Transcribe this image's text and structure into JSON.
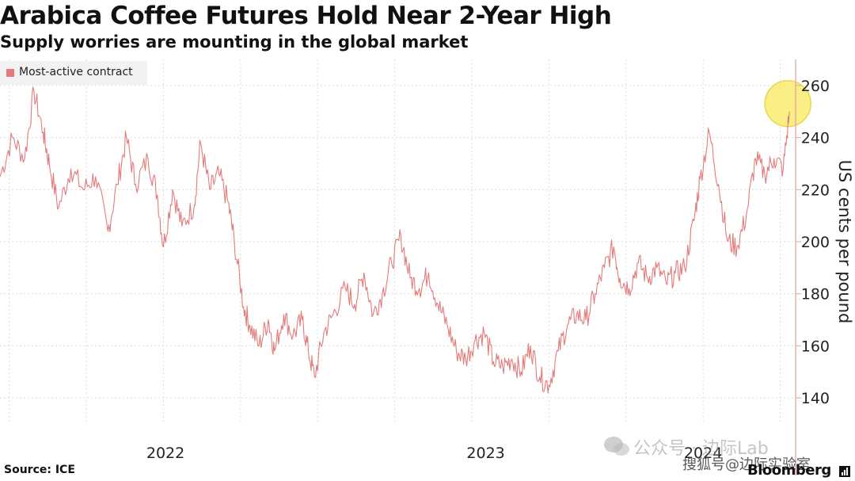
{
  "colors": {
    "series": "#e37b7b",
    "highlight": "#f7ea5c",
    "grid": "#dcdcdc",
    "right_axis": "#e9a3a3"
  },
  "chart_data": {
    "type": "line",
    "title": "Arabica Coffee Futures Hold Near 2-Year High",
    "subtitle": "Supply worries are mounting in the global market",
    "ylabel": "US cents per pound",
    "y_axis_side": "right",
    "ylim": [
      130,
      270
    ],
    "yticks": [
      140,
      160,
      180,
      200,
      220,
      240,
      260
    ],
    "xlim": [
      2021.72,
      2024.3
    ],
    "xticks": [
      {
        "value": 2022.0,
        "label": "2022"
      },
      {
        "value": 2023.0,
        "label": "2023"
      },
      {
        "value": 2024.0,
        "label": "2024"
      }
    ],
    "grid": true,
    "legend": {
      "position": "top-left",
      "entries": [
        "Most-active contract"
      ]
    },
    "series": [
      {
        "name": "Most-active contract",
        "points": [
          [
            2021.72,
            225
          ],
          [
            2021.76,
            240
          ],
          [
            2021.8,
            232
          ],
          [
            2021.83,
            258
          ],
          [
            2021.86,
            242
          ],
          [
            2021.88,
            230
          ],
          [
            2021.91,
            213
          ],
          [
            2021.95,
            228
          ],
          [
            2021.99,
            220
          ],
          [
            2022.03,
            225
          ],
          [
            2022.07,
            204
          ],
          [
            2022.1,
            222
          ],
          [
            2022.13,
            240
          ],
          [
            2022.16,
            222
          ],
          [
            2022.2,
            232
          ],
          [
            2022.23,
            218
          ],
          [
            2022.25,
            198
          ],
          [
            2022.28,
            220
          ],
          [
            2022.31,
            206
          ],
          [
            2022.35,
            214
          ],
          [
            2022.37,
            238
          ],
          [
            2022.4,
            220
          ],
          [
            2022.43,
            226
          ],
          [
            2022.46,
            215
          ],
          [
            2022.48,
            200
          ],
          [
            2022.51,
            175
          ],
          [
            2022.53,
            168
          ],
          [
            2022.56,
            160
          ],
          [
            2022.59,
            170
          ],
          [
            2022.61,
            158
          ],
          [
            2022.64,
            172
          ],
          [
            2022.67,
            164
          ],
          [
            2022.7,
            170
          ],
          [
            2022.72,
            158
          ],
          [
            2022.74,
            148
          ],
          [
            2022.77,
            165
          ],
          [
            2022.8,
            172
          ],
          [
            2022.84,
            182
          ],
          [
            2022.87,
            176
          ],
          [
            2022.9,
            188
          ],
          [
            2022.93,
            172
          ],
          [
            2022.96,
            180
          ],
          [
            2022.99,
            192
          ],
          [
            2023.02,
            202
          ],
          [
            2023.05,
            186
          ],
          [
            2023.08,
            182
          ],
          [
            2023.11,
            188
          ],
          [
            2023.14,
            176
          ],
          [
            2023.17,
            168
          ],
          [
            2023.2,
            158
          ],
          [
            2023.23,
            155
          ],
          [
            2023.26,
            162
          ],
          [
            2023.29,
            165
          ],
          [
            2023.32,
            154
          ],
          [
            2023.35,
            152
          ],
          [
            2023.38,
            155
          ],
          [
            2023.41,
            150
          ],
          [
            2023.44,
            160
          ],
          [
            2023.47,
            148
          ],
          [
            2023.5,
            145
          ],
          [
            2023.53,
            158
          ],
          [
            2023.56,
            168
          ],
          [
            2023.59,
            172
          ],
          [
            2023.62,
            170
          ],
          [
            2023.65,
            180
          ],
          [
            2023.68,
            190
          ],
          [
            2023.71,
            198
          ],
          [
            2023.73,
            186
          ],
          [
            2023.76,
            182
          ],
          [
            2023.79,
            192
          ],
          [
            2023.82,
            186
          ],
          [
            2023.85,
            190
          ],
          [
            2023.88,
            184
          ],
          [
            2023.91,
            188
          ],
          [
            2023.94,
            190
          ],
          [
            2023.97,
            208
          ],
          [
            2023.99,
            224
          ],
          [
            2024.02,
            242
          ],
          [
            2024.05,
            222
          ],
          [
            2024.08,
            200
          ],
          [
            2024.11,
            198
          ],
          [
            2024.14,
            210
          ],
          [
            2024.17,
            232
          ],
          [
            2024.2,
            226
          ],
          [
            2024.23,
            232
          ],
          [
            2024.26,
            228
          ],
          [
            2024.28,
            250
          ]
        ]
      }
    ]
  },
  "footer": {
    "source": "Source: ICE",
    "brand": "Bloomberg",
    "watermark_1": "公众号 · 边际Lab",
    "watermark_2": "搜狐号@边际实验室"
  }
}
